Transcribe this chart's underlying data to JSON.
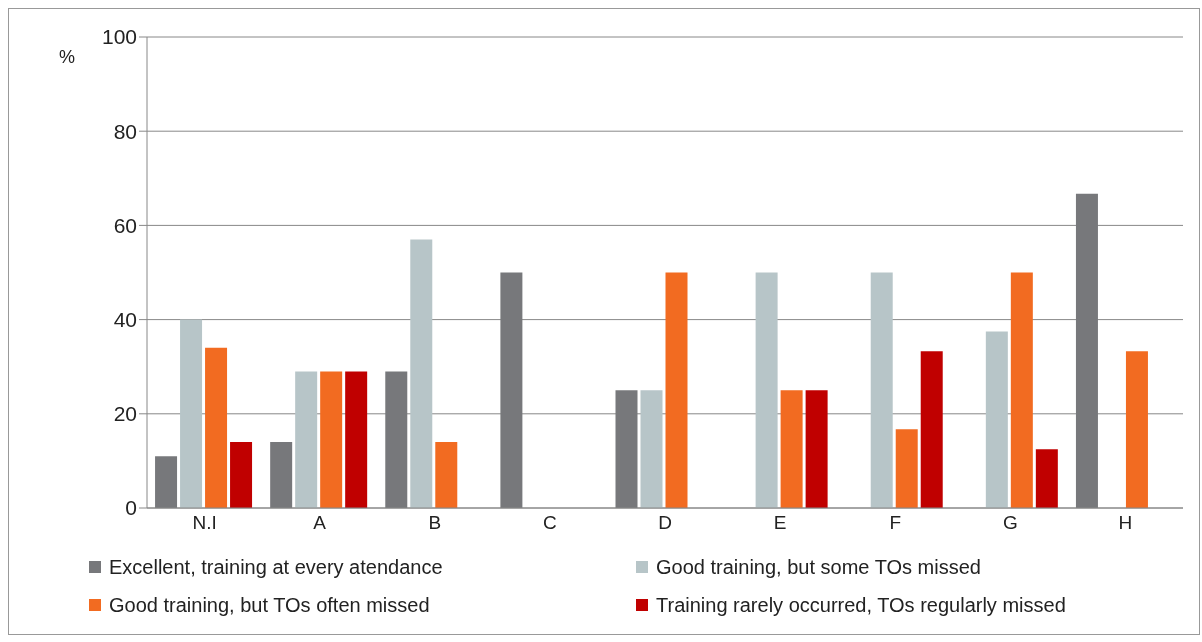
{
  "chart_data": {
    "type": "bar",
    "ylabel": "%",
    "categories": [
      "N.I",
      "A",
      "B",
      "C",
      "D",
      "E",
      "F",
      "G",
      "H"
    ],
    "series": [
      {
        "name": "Excellent, training at every atendance",
        "color": "#77787b",
        "values": [
          11,
          14,
          29,
          50,
          25,
          0,
          0,
          0,
          66.7
        ]
      },
      {
        "name": "Good training, but some TOs missed",
        "color": "#b7c5c8",
        "values": [
          40,
          29,
          57,
          0,
          25,
          50,
          50,
          37.5,
          0
        ]
      },
      {
        "name": "Good training, but TOs often missed",
        "color": "#f26b21",
        "values": [
          34,
          29,
          14,
          0,
          50,
          25,
          16.7,
          50,
          33.3
        ]
      },
      {
        "name": "Training rarely occurred, TOs regularly missed",
        "color": "#c00000",
        "values": [
          14,
          29,
          0,
          0,
          0,
          25,
          33.3,
          12.5,
          0
        ]
      }
    ],
    "ylim": [
      0,
      100
    ],
    "yticks": [
      0,
      20,
      40,
      60,
      80,
      100
    ],
    "grid": "y",
    "legend": "bottom"
  }
}
